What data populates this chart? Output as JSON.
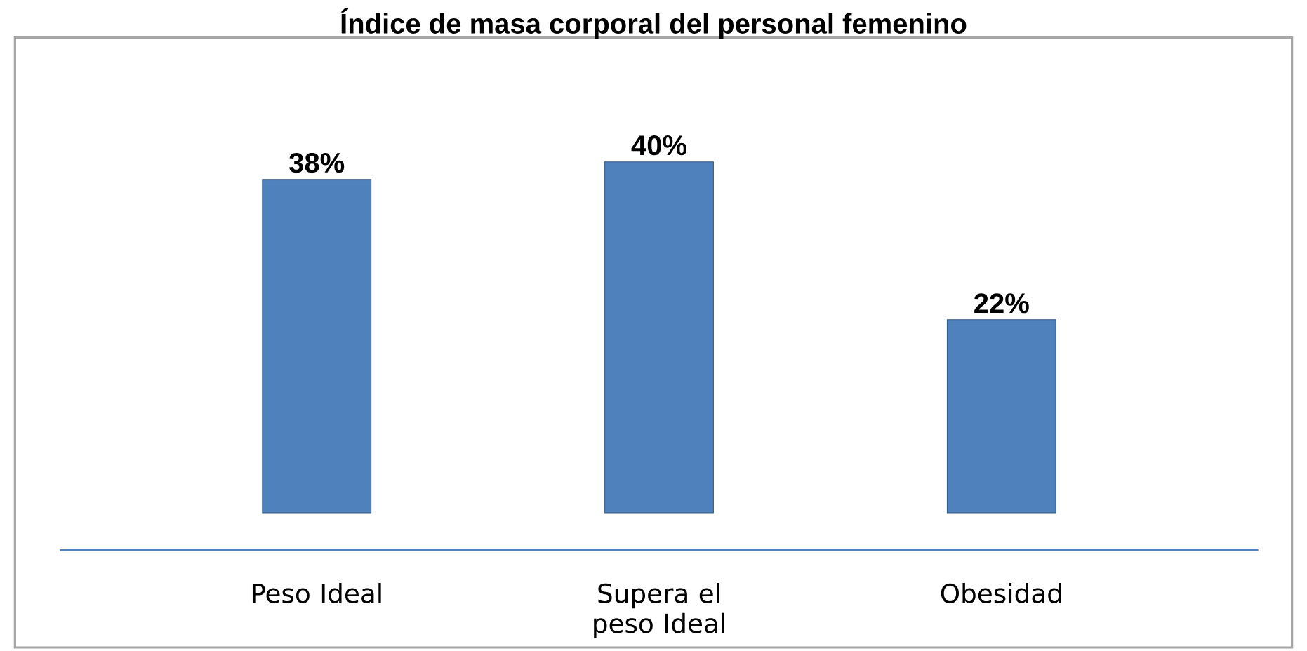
{
  "chart_data": {
    "type": "bar",
    "title": "Índice de masa corporal del personal femenino",
    "categories": [
      "Peso Ideal",
      "Supera el peso Ideal",
      "Obesidad"
    ],
    "values": [
      38,
      40,
      22
    ],
    "value_labels": [
      "38%",
      "40%",
      "22%"
    ],
    "color": "#4f81bd"
  }
}
